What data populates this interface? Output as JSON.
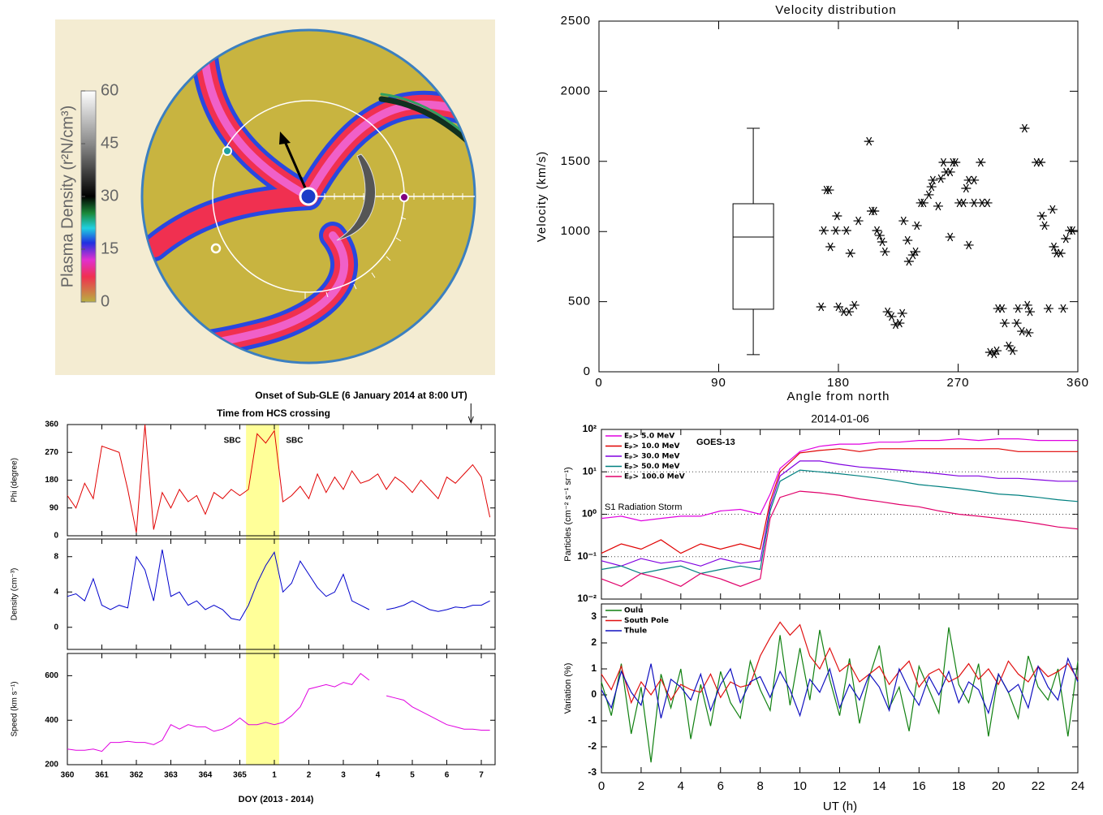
{
  "chart_data": [
    {
      "type": "colormap",
      "colorbar_label": "Plasma Density (r²N/cm³)",
      "colorbar_lim": [
        0,
        60
      ],
      "colorbar_ticks": [
        0,
        15,
        30,
        45,
        60
      ]
    },
    {
      "type": "scatter",
      "title": "Velocity distribution",
      "xlabel": "Angle from north",
      "ylabel": "Velocity (km/s)",
      "xlim": [
        0,
        360
      ],
      "xticks": [
        0,
        90,
        180,
        270,
        360
      ],
      "ylim": [
        0,
        2500
      ],
      "yticks": [
        0,
        500,
        1000,
        1500,
        2000,
        2500
      ],
      "color": "#000000",
      "x": [
        167,
        171,
        173,
        169,
        178,
        174,
        179,
        180,
        184,
        188,
        192,
        186,
        189,
        195,
        203,
        205,
        207,
        209,
        211,
        213,
        215,
        217,
        220,
        223,
        226,
        228,
        229,
        232,
        233,
        236,
        238,
        239,
        242,
        244,
        248,
        250,
        251,
        255,
        257,
        259,
        261,
        264,
        264,
        266,
        268,
        271,
        274,
        276,
        278,
        282,
        282,
        287,
        288,
        278,
        292,
        294,
        297,
        299,
        300,
        303,
        305,
        308,
        311,
        314,
        315,
        318,
        320,
        322,
        323,
        324,
        329,
        332,
        333,
        335,
        338,
        341,
        342,
        344,
        347,
        349,
        351,
        354,
        356
      ],
      "values": [
        463,
        1296,
        1296,
        1007,
        1007,
        891,
        1111,
        463,
        428,
        428,
        475,
        1007,
        845,
        1076,
        1643,
        1146,
        1146,
        1007,
        972,
        926,
        856,
        428,
        394,
        336,
        347,
        417,
        1076,
        937,
        787,
        833,
        856,
        1042,
        1204,
        1204,
        1262,
        1319,
        1366,
        1181,
        1377,
        1493,
        1424,
        1424,
        961,
        1493,
        1493,
        1204,
        1204,
        1308,
        1366,
        1366,
        1204,
        1493,
        1204,
        903,
        1204,
        139,
        127,
        150,
        451,
        451,
        347,
        185,
        150,
        347,
        451,
        289,
        1736,
        475,
        278,
        428,
        1493,
        1493,
        1111,
        1042,
        451,
        1157,
        891,
        845,
        845,
        451,
        949,
        1007,
        1007
      ],
      "box": {
        "x": 116,
        "whislo": 122,
        "q1": 446,
        "med": 961,
        "q3": 1198,
        "whishi": 1736
      }
    },
    {
      "type": "multipanel",
      "annotation": "Onset of Sub-GLE  (6 January 2014 at 8:00 UT)",
      "title": "Time from HCS crossing",
      "onset_x": 371.7,
      "shade": {
        "range": [
          365.18,
          366.14
        ],
        "labels": [
          "SBC",
          "SBC"
        ],
        "color": "#ffff99"
      },
      "xlabel": "DOY (2013 - 2014)",
      "xlim": [
        360,
        372.4
      ],
      "xticks": [
        360,
        361,
        362,
        363,
        364,
        365,
        {
          "value": 366,
          "label": "1"
        },
        {
          "value": 367,
          "label": "2"
        },
        {
          "value": 368,
          "label": "3"
        },
        {
          "value": 369,
          "label": "4"
        },
        {
          "value": 370,
          "label": "5"
        },
        {
          "value": 371,
          "label": "6"
        },
        {
          "value": 372,
          "label": "7"
        }
      ],
      "x": [
        360,
        360.25,
        360.5,
        360.75,
        361,
        361.25,
        361.5,
        361.75,
        362,
        362.25,
        362.5,
        362.75,
        363,
        363.25,
        363.5,
        363.75,
        364,
        364.25,
        364.5,
        364.75,
        365,
        365.25,
        365.5,
        365.75,
        366,
        366.25,
        366.5,
        366.75,
        367,
        367.25,
        367.5,
        367.75,
        368,
        368.25,
        368.5,
        368.75,
        369,
        369.25,
        369.5,
        369.75,
        370,
        370.25,
        370.5,
        370.75,
        371,
        371.25,
        371.5,
        371.75,
        372,
        372.25
      ],
      "panels": [
        {
          "ylabel": "Phi (degree)",
          "ylim": [
            0,
            360
          ],
          "yticks": [
            0,
            90,
            180,
            270,
            360
          ],
          "color": "#e00000",
          "values": [
            130,
            90,
            170,
            120,
            290,
            280,
            270,
            150,
            10,
            360,
            20,
            140,
            90,
            150,
            110,
            130,
            70,
            140,
            120,
            150,
            130,
            150,
            330,
            300,
            340,
            110,
            130,
            160,
            120,
            200,
            140,
            190,
            150,
            210,
            170,
            180,
            200,
            150,
            190,
            170,
            140,
            180,
            150,
            120,
            190,
            170,
            200,
            230,
            190,
            60
          ]
        },
        {
          "ylabel": "Density (cm⁻³)",
          "ylim": [
            -2.5,
            10
          ],
          "yticks": [
            0,
            4,
            8
          ],
          "color": "#0000cc",
          "values": [
            3.5,
            3.8,
            3,
            5.5,
            2.5,
            2,
            2.5,
            2.2,
            8,
            6.5,
            3,
            8.8,
            3.5,
            4,
            2.5,
            3,
            2,
            2.5,
            2,
            1,
            0.8,
            2.5,
            5,
            7,
            8.5,
            4,
            5,
            7.5,
            6,
            4.5,
            3.5,
            4,
            6,
            3,
            2.5,
            2,
            null,
            2,
            2.2,
            2.5,
            3,
            2.5,
            2,
            1.8,
            2,
            2.3,
            2.2,
            2.5,
            2.5,
            3
          ]
        },
        {
          "ylabel": "Speed (km s⁻¹)",
          "ylim": [
            200,
            700
          ],
          "yticks": [
            200,
            400,
            600
          ],
          "color": "#e000e0",
          "values": [
            270,
            265,
            265,
            270,
            260,
            300,
            300,
            305,
            300,
            300,
            290,
            310,
            380,
            360,
            380,
            370,
            370,
            350,
            360,
            380,
            410,
            380,
            380,
            390,
            380,
            390,
            420,
            460,
            540,
            550,
            560,
            550,
            570,
            560,
            610,
            580,
            null,
            510,
            500,
            490,
            460,
            440,
            420,
            400,
            380,
            370,
            360,
            360,
            355,
            355
          ]
        }
      ]
    },
    {
      "type": "line",
      "title": "2014-01-06",
      "ylabel": "Particles (cm⁻² s⁻¹ sr⁻¹)",
      "log_y": true,
      "grid": true,
      "legend": "upper left",
      "annotations": [
        "GOES-13",
        "S1 Radiation Storm"
      ],
      "xlim": [
        0,
        24
      ],
      "ylim": [
        0.01,
        100
      ],
      "yticks": [
        {
          "value": 0.01,
          "label": "10⁻²"
        },
        {
          "value": 0.1,
          "label": "10⁻¹"
        },
        {
          "value": 1,
          "label": "10⁰"
        },
        {
          "value": 10,
          "label": "10¹"
        },
        {
          "value": 100,
          "label": "10²"
        }
      ],
      "x": [
        0,
        1,
        2,
        3,
        4,
        5,
        6,
        7,
        8,
        8.5,
        9,
        10,
        11,
        12,
        13,
        14,
        15,
        16,
        17,
        18,
        19,
        20,
        21,
        22,
        23,
        24
      ],
      "series": [
        {
          "name": "Eₚ>   5.0 MeV",
          "color": "#e000e0",
          "values": [
            0.8,
            0.9,
            0.7,
            0.8,
            0.9,
            0.9,
            1.2,
            1.3,
            1.0,
            3,
            12,
            30,
            40,
            45,
            45,
            50,
            50,
            55,
            55,
            60,
            55,
            60,
            60,
            55,
            55,
            55
          ]
        },
        {
          "name": "Eₚ>  10.0 MeV",
          "color": "#e00000",
          "values": [
            0.12,
            0.2,
            0.15,
            0.25,
            0.12,
            0.2,
            0.15,
            0.2,
            0.15,
            2,
            10,
            28,
            32,
            35,
            30,
            35,
            35,
            35,
            35,
            35,
            35,
            35,
            30,
            30,
            30,
            30
          ]
        },
        {
          "name": "Eₚ>  30.0 MeV",
          "color": "#8000e0",
          "values": [
            0.08,
            0.06,
            0.09,
            0.07,
            0.08,
            0.06,
            0.09,
            0.07,
            0.08,
            1.5,
            8,
            18,
            18,
            15,
            13,
            12,
            11,
            10,
            9,
            8,
            8,
            7,
            7,
            6.5,
            6,
            6
          ]
        },
        {
          "name": "Eₚ>  50.0 MeV",
          "color": "#008080",
          "values": [
            0.05,
            0.06,
            0.04,
            0.05,
            0.06,
            0.04,
            0.05,
            0.06,
            0.05,
            1.2,
            6,
            11,
            10,
            9,
            8,
            7,
            6,
            5,
            4.5,
            4,
            3.5,
            3,
            2.8,
            2.5,
            2.2,
            2
          ]
        },
        {
          "name": "Eₚ> 100.0 MeV",
          "color": "#e0006a",
          "values": [
            0.03,
            0.02,
            0.04,
            0.03,
            0.02,
            0.04,
            0.03,
            0.02,
            0.03,
            0.8,
            2.5,
            3.5,
            3.2,
            2.8,
            2.3,
            2,
            1.7,
            1.5,
            1.2,
            1,
            0.9,
            0.8,
            0.7,
            0.6,
            0.5,
            0.45
          ]
        }
      ]
    },
    {
      "type": "line",
      "xlabel": "UT (h)",
      "ylabel": "Variation (%)",
      "legend": "upper left",
      "xlim": [
        0,
        24
      ],
      "xticks": [
        0,
        2,
        4,
        6,
        8,
        10,
        12,
        14,
        16,
        18,
        20,
        22,
        24
      ],
      "ylim": [
        -3,
        3.5
      ],
      "yticks": [
        -3,
        -2,
        -1,
        0,
        1,
        2,
        3
      ],
      "x": [
        0,
        0.5,
        1,
        1.5,
        2,
        2.5,
        3,
        3.5,
        4,
        4.5,
        5,
        5.5,
        6,
        6.5,
        7,
        7.5,
        8,
        8.5,
        9,
        9.5,
        10,
        10.5,
        11,
        11.5,
        12,
        12.5,
        13,
        13.5,
        14,
        14.5,
        15,
        15.5,
        16,
        16.5,
        17,
        17.5,
        18,
        18.5,
        19,
        19.5,
        20,
        20.5,
        21,
        21.5,
        22,
        22.5,
        23,
        23.5,
        24
      ],
      "series": [
        {
          "name": "Oulu",
          "color": "#108010",
          "values": [
            0.5,
            -0.8,
            1.2,
            -1.5,
            0.3,
            -2.6,
            0.8,
            -0.5,
            1.0,
            -1.7,
            0.4,
            -1.2,
            0.9,
            -0.3,
            -0.9,
            1.3,
            0.2,
            -0.6,
            2.3,
            -0.4,
            1.8,
            -0.2,
            2.5,
            0.6,
            -0.8,
            1.4,
            -1.1,
            0.7,
            1.9,
            -0.5,
            0.3,
            -1.4,
            1.1,
            0.2,
            -0.7,
            2.6,
            0.4,
            -0.3,
            1.2,
            -1.6,
            0.8,
            0.1,
            -0.9,
            1.5,
            0.3,
            -0.2,
            1.0,
            -1.6,
            1.3
          ]
        },
        {
          "name": "South Pole",
          "color": "#e01010",
          "values": [
            0.8,
            0.2,
            1.1,
            -0.3,
            0.5,
            0.0,
            0.6,
            -0.2,
            0.4,
            0.2,
            0.1,
            0.8,
            -0.1,
            0.5,
            0.3,
            0.4,
            1.5,
            2.2,
            2.8,
            2.3,
            2.7,
            1.5,
            1.0,
            1.8,
            0.9,
            1.2,
            0.5,
            0.8,
            1.1,
            0.4,
            0.9,
            1.3,
            0.3,
            0.8,
            1.0,
            0.5,
            0.7,
            1.2,
            0.6,
            1.0,
            0.4,
            1.3,
            0.8,
            0.5,
            1.1,
            0.7,
            0.9,
            1.2,
            0.6
          ]
        },
        {
          "name": "Thule",
          "color": "#1010c0",
          "values": [
            0.2,
            -0.5,
            0.9,
            0.1,
            -0.4,
            1.2,
            -0.9,
            0.6,
            0.3,
            -0.2,
            0.8,
            -0.6,
            0.4,
            1.0,
            -0.3,
            0.5,
            0.7,
            -0.1,
            0.9,
            0.2,
            -0.8,
            0.6,
            0.1,
            1.0,
            -0.5,
            0.4,
            -0.2,
            0.8,
            0.3,
            -0.6,
            1.0,
            0.2,
            -0.4,
            0.7,
            0.0,
            0.9,
            -0.3,
            0.5,
            0.2,
            -0.7,
            0.8,
            0.1,
            0.4,
            -0.5,
            1.1,
            0.3,
            -0.2,
            1.4,
            0.5
          ]
        }
      ]
    }
  ]
}
